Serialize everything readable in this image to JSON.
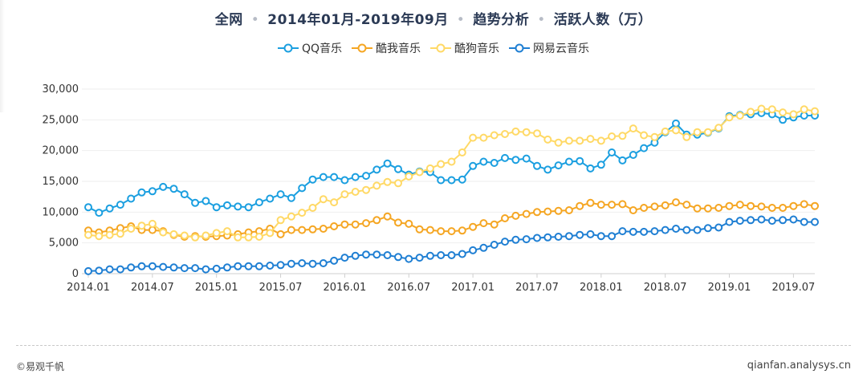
{
  "header": {
    "segments": [
      "全网",
      "2014年01月-2019年09月",
      "趋势分析",
      "活跃人数（万）"
    ],
    "separator": "•"
  },
  "footer": {
    "copyright": "©易观千帆",
    "source": "qianfan.analysys.cn"
  },
  "chart_data": {
    "type": "line",
    "title": "全网 • 2014年01月-2019年09月 • 趋势分析 • 活跃人数（万）",
    "xlabel": "",
    "ylabel": "",
    "ylim": [
      0,
      30000
    ],
    "yticks": [
      0,
      5000,
      10000,
      15000,
      20000,
      25000,
      30000
    ],
    "ytick_labels": [
      "0",
      "5,000",
      "10,000",
      "15,000",
      "20,000",
      "25,000",
      "30,000"
    ],
    "xtick_labels": [
      "2014.01",
      "2014.07",
      "2015.01",
      "2015.07",
      "2016.01",
      "2016.07",
      "2017.01",
      "2017.07",
      "2018.01",
      "2018.07",
      "2019.01",
      "2019.07"
    ],
    "xtick_every": 6,
    "grid": true,
    "legend_position": "top-center",
    "categories": [
      "2014.01",
      "2014.02",
      "2014.03",
      "2014.04",
      "2014.05",
      "2014.06",
      "2014.07",
      "2014.08",
      "2014.09",
      "2014.10",
      "2014.11",
      "2014.12",
      "2015.01",
      "2015.02",
      "2015.03",
      "2015.04",
      "2015.05",
      "2015.06",
      "2015.07",
      "2015.08",
      "2015.09",
      "2015.10",
      "2015.11",
      "2015.12",
      "2016.01",
      "2016.02",
      "2016.03",
      "2016.04",
      "2016.05",
      "2016.06",
      "2016.07",
      "2016.08",
      "2016.09",
      "2016.10",
      "2016.11",
      "2016.12",
      "2017.01",
      "2017.02",
      "2017.03",
      "2017.04",
      "2017.05",
      "2017.06",
      "2017.07",
      "2017.08",
      "2017.09",
      "2017.10",
      "2017.11",
      "2017.12",
      "2018.01",
      "2018.02",
      "2018.03",
      "2018.04",
      "2018.05",
      "2018.06",
      "2018.07",
      "2018.08",
      "2018.09",
      "2018.10",
      "2018.11",
      "2018.12",
      "2019.01",
      "2019.02",
      "2019.03",
      "2019.04",
      "2019.05",
      "2019.06",
      "2019.07",
      "2019.08",
      "2019.09"
    ],
    "series": [
      {
        "name": "QQ音乐",
        "color": "#1b9fe0",
        "values": [
          10800,
          9900,
          10600,
          11200,
          12200,
          13200,
          13400,
          14100,
          13800,
          12900,
          11500,
          11800,
          10800,
          11100,
          10900,
          10800,
          11600,
          12200,
          12900,
          12300,
          13900,
          15300,
          15700,
          15700,
          15200,
          15700,
          15900,
          16900,
          17900,
          17000,
          16100,
          16600,
          16500,
          15200,
          15200,
          15300,
          17500,
          18200,
          18000,
          18800,
          18500,
          18700,
          17500,
          16900,
          17600,
          18200,
          18300,
          17100,
          17700,
          19700,
          18400,
          19300,
          20400,
          21300,
          23000,
          24400,
          22600,
          22600,
          22900,
          23600,
          25600,
          25800,
          25900,
          26100,
          25900,
          25000,
          25400,
          25700,
          25700
        ]
      },
      {
        "name": "酷我音乐",
        "color": "#f5a623",
        "values": [
          7000,
          6700,
          7000,
          7400,
          7700,
          7100,
          7100,
          6900,
          6300,
          6000,
          6100,
          6000,
          6100,
          6200,
          6400,
          6700,
          6900,
          7300,
          6400,
          7100,
          7100,
          7200,
          7300,
          7700,
          8000,
          8000,
          8200,
          8700,
          9300,
          8300,
          8100,
          7200,
          7100,
          6900,
          6900,
          7000,
          7600,
          8200,
          8000,
          9000,
          9400,
          9700,
          10000,
          10100,
          10200,
          10300,
          11000,
          11500,
          11200,
          11200,
          11300,
          10300,
          10700,
          10900,
          11100,
          11600,
          11200,
          10600,
          10600,
          10700,
          11000,
          11200,
          11000,
          10900,
          10700,
          10700,
          11000,
          11300,
          11000
        ]
      },
      {
        "name": "酷狗音乐",
        "color": "#ffd966",
        "values": [
          6300,
          6100,
          6300,
          6500,
          7300,
          7800,
          8100,
          6700,
          6400,
          6200,
          5900,
          6200,
          6600,
          6900,
          5900,
          5900,
          6000,
          6600,
          8700,
          9300,
          9900,
          10700,
          12100,
          11600,
          12900,
          13300,
          13600,
          14300,
          14900,
          14700,
          15800,
          16500,
          17100,
          17800,
          18200,
          19700,
          22100,
          22100,
          22500,
          22700,
          23100,
          23000,
          22800,
          21800,
          21300,
          21600,
          21600,
          21900,
          21600,
          22300,
          22400,
          23600,
          22500,
          22200,
          23100,
          23300,
          22200,
          23000,
          23000,
          23700,
          25400,
          25700,
          26300,
          26800,
          26700,
          26200,
          25900,
          26700,
          26400
        ]
      },
      {
        "name": "网易云音乐",
        "color": "#1f7fd3",
        "values": [
          400,
          500,
          700,
          700,
          1000,
          1200,
          1200,
          1100,
          1000,
          900,
          900,
          700,
          800,
          1000,
          1200,
          1200,
          1200,
          1300,
          1400,
          1600,
          1700,
          1600,
          1700,
          2100,
          2600,
          2900,
          3100,
          3100,
          3000,
          2700,
          2400,
          2600,
          2900,
          3000,
          3000,
          3200,
          3800,
          4200,
          4700,
          5200,
          5500,
          5600,
          5800,
          5900,
          6000,
          6100,
          6300,
          6400,
          6100,
          6100,
          6900,
          6800,
          6800,
          6900,
          7100,
          7300,
          7100,
          7100,
          7400,
          7500,
          8400,
          8600,
          8700,
          8800,
          8600,
          8700,
          8800,
          8400,
          8400
        ]
      }
    ]
  }
}
